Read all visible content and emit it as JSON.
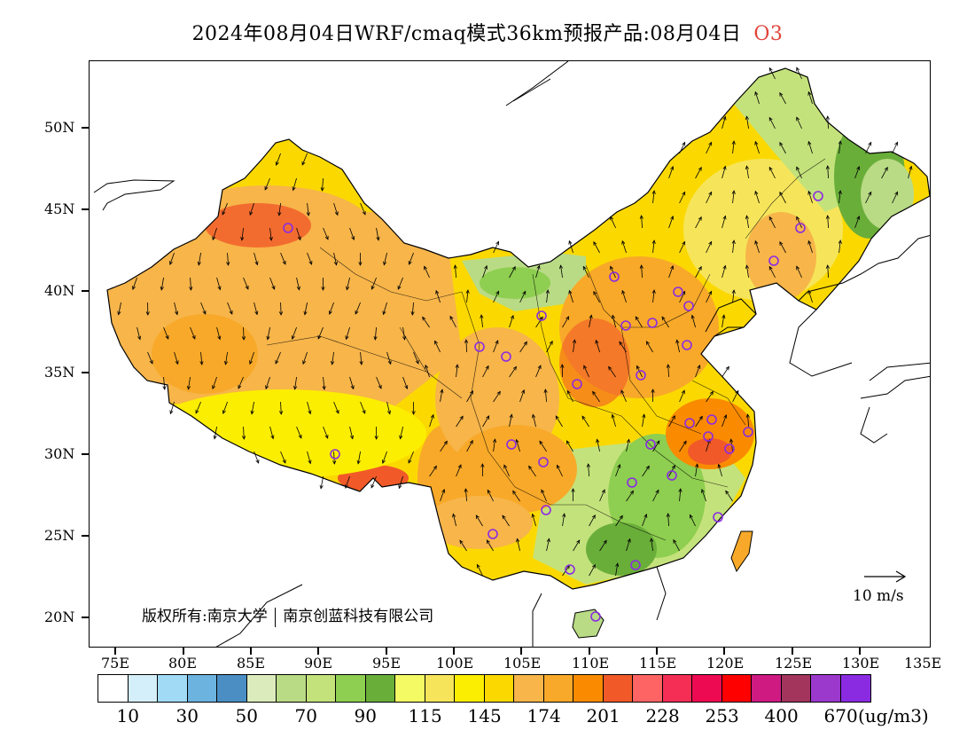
{
  "title": {
    "main": "2024年08月04日WRF/cmaq模式36km预报产品:08月04日",
    "pollutant": "O3"
  },
  "map": {
    "lat_labels": [
      "50N",
      "45N",
      "40N",
      "35N",
      "30N",
      "25N",
      "20N"
    ],
    "lon_labels": [
      "75E",
      "80E",
      "85E",
      "90E",
      "95E",
      "100E",
      "105E",
      "110E",
      "115E",
      "120E",
      "125E",
      "130E",
      "135E"
    ],
    "copyright_prefix": "版权所有:南京大学",
    "copyright_suffix": "南京创蓝科技有限公司",
    "wind_scale_label": "10 m/s"
  },
  "colorbar": {
    "colors": [
      "#ffffff",
      "#d4effa",
      "#a0daf5",
      "#6cb3e0",
      "#4a8ec4",
      "#dcebbc",
      "#b9db85",
      "#c4e27b",
      "#8ece50",
      "#6aae3a",
      "#f4fa64",
      "#f6e55a",
      "#fcee00",
      "#fbd900",
      "#f7b54a",
      "#f8a929",
      "#fa8b00",
      "#f15a28",
      "#ff6464",
      "#f52e56",
      "#ee0a52",
      "#ff0000",
      "#cf1a82",
      "#a3355c",
      "#9b39cc",
      "#8a2be2"
    ],
    "labels": [
      "10",
      "30",
      "50",
      "70",
      "90",
      "115",
      "145",
      "174",
      "201",
      "228",
      "253",
      "400",
      "670"
    ],
    "unit": "(ug/m3)"
  },
  "colors": {
    "pollutant_title": "#e0443a",
    "station_marker": "#8a2be2",
    "sea": "#ffffff"
  },
  "stations_count": 36
}
